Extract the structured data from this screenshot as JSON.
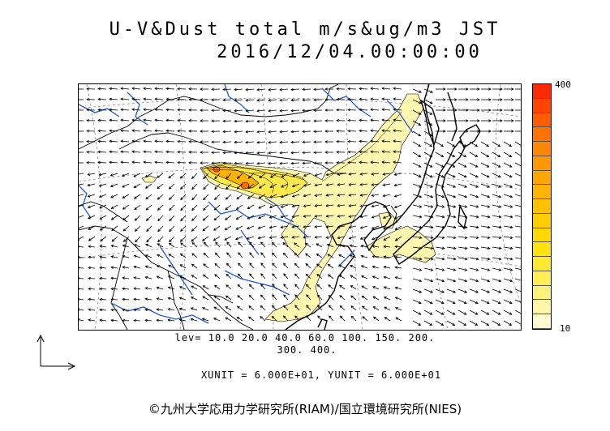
{
  "header": {
    "title_line1": "U-V&Dust total m/s&ug/m3 JST",
    "title_line2": "2016/12/04.00:00:00"
  },
  "colorbar": {
    "max_label": "400",
    "min_label": "10",
    "colors": [
      "#fffbd0",
      "#fff7a8",
      "#fff27a",
      "#ffee55",
      "#ffe930",
      "#ffe210",
      "#ffd900",
      "#ffce00",
      "#ffc200",
      "#ffb500",
      "#ffa600",
      "#ff9700",
      "#ff8600",
      "#ff7300",
      "#ff5e00",
      "#ff4400",
      "#ff2a00"
    ]
  },
  "legend": {
    "levels_line1": "lev= 10.0 20.0 40.0 60.0 100. 150. 200.",
    "levels_line2": "300. 400.",
    "units_line": "XUNIT = 6.000E+01, YUNIT = 6.000E+01"
  },
  "footer": {
    "credit": "©九州大学応用力学研究所(RIAM)/国立環境研究所(NIES)"
  },
  "map": {
    "coastline_color": "#000000",
    "river_color": "#1e5adc",
    "dust_fill_light": "#fff7b0",
    "dust_fill_mid": "#ffe84a",
    "dust_fill_high": "#ffb300",
    "dust_core": "#ff6a00",
    "vector_color": "#000000"
  }
}
